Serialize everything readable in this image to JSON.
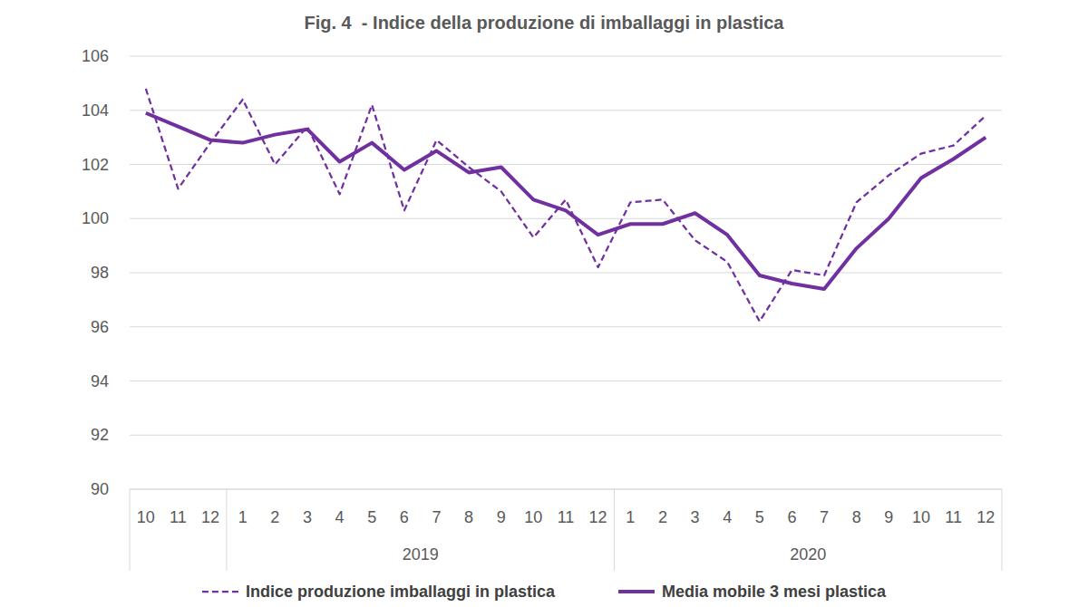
{
  "chart_data": {
    "type": "line",
    "title": "Fig. 4  - Indice della produzione di imballaggi in plastica",
    "categories": [
      "10",
      "11",
      "12",
      "1",
      "2",
      "3",
      "4",
      "5",
      "6",
      "7",
      "8",
      "9",
      "10",
      "11",
      "12",
      "1",
      "2",
      "3",
      "4",
      "5",
      "6",
      "7",
      "8",
      "9",
      "10",
      "11",
      "12"
    ],
    "x_groups": [
      {
        "label": null,
        "count": 3
      },
      {
        "label": "2019",
        "count": 12
      },
      {
        "label": "2020",
        "count": 12
      }
    ],
    "series": [
      {
        "name": "Indice produzione imballaggi in plastica",
        "color": "#7030a0",
        "line_style": "dashed",
        "values": [
          104.8,
          101.1,
          102.8,
          104.4,
          102.0,
          103.4,
          100.9,
          104.2,
          100.3,
          102.9,
          101.9,
          101.0,
          99.3,
          100.7,
          98.2,
          100.6,
          100.7,
          99.2,
          98.4,
          96.2,
          98.1,
          97.9,
          100.6,
          101.6,
          102.4,
          102.7,
          103.8
        ]
      },
      {
        "name": "Media mobile 3 mesi plastica",
        "color": "#7030a0",
        "line_style": "solid",
        "values": [
          103.9,
          103.4,
          102.9,
          102.8,
          103.1,
          103.3,
          102.1,
          102.8,
          101.8,
          102.5,
          101.7,
          101.9,
          100.7,
          100.3,
          99.4,
          99.8,
          99.8,
          100.2,
          99.4,
          97.9,
          97.6,
          97.4,
          98.9,
          100.0,
          101.5,
          102.2,
          103.0
        ]
      }
    ],
    "ylim": [
      90,
      106
    ],
    "yticks": [
      90,
      92,
      94,
      96,
      98,
      100,
      102,
      104,
      106
    ],
    "grid": true,
    "legend": "bottom"
  }
}
